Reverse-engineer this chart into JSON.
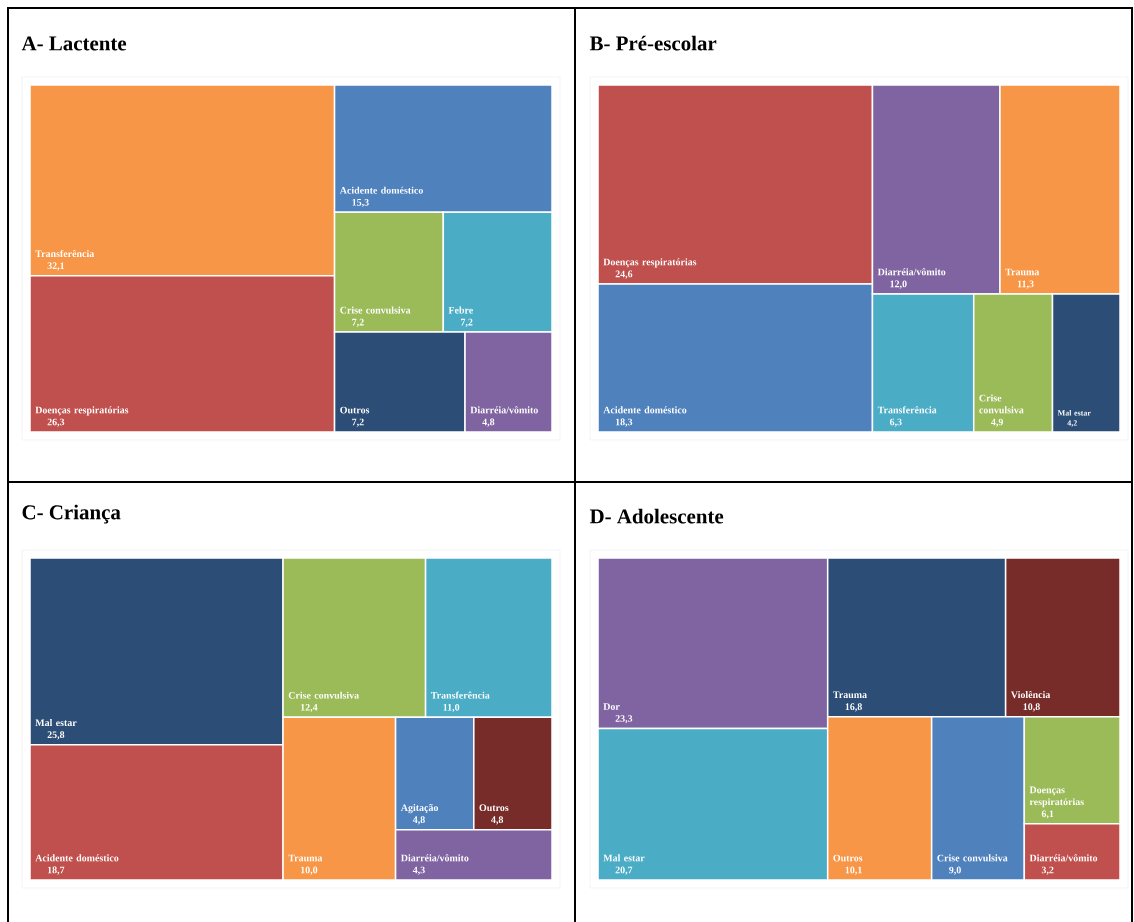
{
  "chart_data": [
    {
      "type": "other",
      "title": "A- Lactente",
      "categories": [
        "Transferência",
        "Doenças respiratórias",
        "Acidente doméstico",
        "Crise convulsiva",
        "Febre",
        "Outros",
        "Diarréia/vômito"
      ],
      "values": [
        32.1,
        26.3,
        15.3,
        7.2,
        7.2,
        7.2,
        4.8
      ],
      "value_labels": [
        "32,1",
        "26,3",
        "15,3",
        "7,2",
        "7,2",
        "7,2",
        "4,8"
      ],
      "colors": [
        "#f79646",
        "#c0504d",
        "#4f81bd",
        "#9bbb59",
        "#4bacc6",
        "#2c4d75",
        "#8064a2"
      ]
    },
    {
      "type": "other",
      "title": "B- Pré-escolar",
      "categories": [
        "Doenças respiratórias",
        "Acidente doméstico",
        "Diarréia/vômito",
        "Trauma",
        "Transferência",
        "Crise convulsiva",
        "Mal estar"
      ],
      "values": [
        24.6,
        18.3,
        12.0,
        11.3,
        6.3,
        4.9,
        4.2
      ],
      "value_labels": [
        "24,6",
        "18,3",
        "12,0",
        "11,3",
        "6,3",
        "4,9",
        "4,2"
      ],
      "colors": [
        "#c0504d",
        "#4f81bd",
        "#8064a2",
        "#f79646",
        "#4bacc6",
        "#9bbb59",
        "#2c4d75"
      ]
    },
    {
      "type": "other",
      "title": "C- Criança",
      "categories": [
        "Mal estar",
        "Acidente doméstico",
        "Crise convulsiva",
        "Transferência",
        "Trauma",
        "Agitação",
        "Outros",
        "Diarréia/vômito"
      ],
      "values": [
        25.8,
        18.7,
        12.4,
        11.0,
        10.0,
        4.8,
        4.8,
        4.3
      ],
      "value_labels": [
        "25,8",
        "18,7",
        "12,4",
        "11,0",
        "10,0",
        "4,8",
        "4,8",
        "4,3"
      ],
      "colors": [
        "#2c4d75",
        "#c0504d",
        "#9bbb59",
        "#4bacc6",
        "#f79646",
        "#4f81bd",
        "#772c2a",
        "#8064a2"
      ]
    },
    {
      "type": "other",
      "title": "D- Adolescente",
      "categories": [
        "Dor",
        "Mal estar",
        "Trauma",
        "Violência",
        "Outros",
        "Crise convulsiva",
        "Doenças respiratórias",
        "Diarréia/vômito"
      ],
      "values": [
        23.3,
        20.7,
        16.8,
        10.8,
        10.1,
        9.0,
        6.1,
        3.2
      ],
      "value_labels": [
        "23,3",
        "20,7",
        "16,8",
        "10,8",
        "10,1",
        "9,0",
        "6,1",
        "3,2"
      ],
      "colors": [
        "#8064a2",
        "#4bacc6",
        "#2c4d75",
        "#772c2a",
        "#f79646",
        "#4f81bd",
        "#9bbb59",
        "#c0504d"
      ]
    }
  ]
}
